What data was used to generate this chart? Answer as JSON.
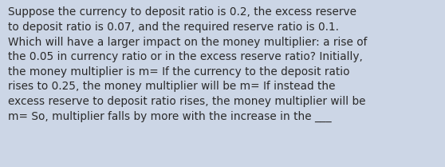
{
  "text": "Suppose the currency to deposit ratio is 0.2, the excess reserve\nto deposit ratio is 0.07, and the required reserve ratio is 0.1.\nWhich will have a larger impact on the money multiplier: a rise of\nthe 0.05 in currency ratio or in the excess reserve ratio? Initially,\nthe money multiplier is m= If the currency to the deposit ratio\nrises to 0.25, the money multiplier will be m= If instead the\nexcess reserve to deposit ratio rises, the money multiplier will be\nm= So, multiplier falls by more with the increase in the ___",
  "bg_color": "#ccd6e6",
  "text_color": "#2a2a2a",
  "font_size": 9.8,
  "fig_width": 5.58,
  "fig_height": 2.09,
  "dpi": 100
}
